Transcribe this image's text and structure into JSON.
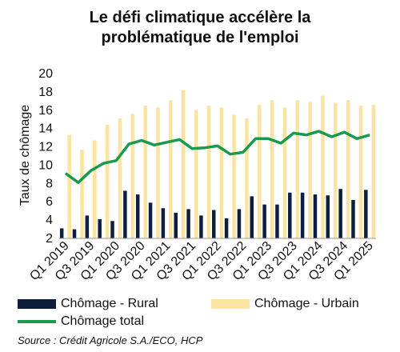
{
  "chart_data": {
    "type": "bar",
    "title_lines": [
      "Le défi climatique accélère la",
      "problématique de l'emploi"
    ],
    "ylabel": "Taux de chômage",
    "ylim": [
      2,
      20
    ],
    "yticks": [
      2,
      4,
      6,
      8,
      10,
      12,
      14,
      16,
      18,
      20
    ],
    "categories": [
      "Q1 2019",
      "Q2 2019",
      "Q3 2019",
      "Q4 2019",
      "Q1 2020",
      "Q2 2020",
      "Q3 2020",
      "Q4 2020",
      "Q1 2021",
      "Q2 2021",
      "Q3 2021",
      "Q4 2021",
      "Q1 2022",
      "Q2 2022",
      "Q3 2022",
      "Q4 2022",
      "Q1 2023",
      "Q2 2023",
      "Q3 2023",
      "Q4 2023",
      "Q1 2024",
      "Q2 2024",
      "Q3 2024",
      "Q4 2024",
      "Q1 2025"
    ],
    "xtick_labels": [
      "Q1 2019",
      "",
      "Q3 2019",
      "",
      "Q1 2020",
      "",
      "Q3 2020",
      "",
      "Q1 2021",
      "",
      "Q3 2021",
      "",
      "Q1 2022",
      "",
      "Q3 2022",
      "",
      "Q1 2023",
      "",
      "Q3 2023",
      "",
      "Q1 2024",
      "",
      "Q3 2024",
      "",
      "Q1 2025"
    ],
    "series": [
      {
        "name": "Chômage - Rural",
        "type": "bar",
        "color": "#0d1f3c",
        "values": [
          3.1,
          3.0,
          4.5,
          4.1,
          3.9,
          7.2,
          6.8,
          5.9,
          5.3,
          4.8,
          5.2,
          4.5,
          5.1,
          4.2,
          5.2,
          6.6,
          5.7,
          5.7,
          7.0,
          7.0,
          6.8,
          6.7,
          7.4,
          6.2,
          7.3
        ]
      },
      {
        "name": "Chômage - Urbain",
        "type": "bar",
        "color": "#fbe3a1",
        "values": [
          13.3,
          11.7,
          12.7,
          14.4,
          15.1,
          15.6,
          16.5,
          16.3,
          17.1,
          18.2,
          16.0,
          16.5,
          16.3,
          15.5,
          15.1,
          16.6,
          17.1,
          16.3,
          17.1,
          16.9,
          17.6,
          16.8,
          17.1,
          16.5,
          16.6
        ]
      },
      {
        "name": "Chômage total",
        "type": "line",
        "color": "#1a9a4d",
        "values": [
          9.1,
          8.1,
          9.4,
          10.2,
          10.5,
          12.3,
          12.7,
          12.2,
          12.5,
          12.8,
          11.8,
          11.9,
          12.1,
          11.2,
          11.4,
          12.9,
          12.9,
          12.4,
          13.5,
          13.3,
          13.7,
          13.1,
          13.6,
          12.9,
          13.3
        ]
      }
    ],
    "grid": false,
    "legend_position": "bottom"
  },
  "source": "Source : Crédit Agricole S.A./ECO, HCP"
}
